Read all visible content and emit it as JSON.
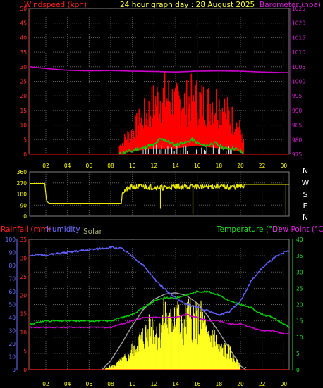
{
  "header": {
    "windspeed_label": "Windspeed (kph)",
    "title": "24 hour graph day : 28 August 2025",
    "barometer_label": "Barometer (hpa)"
  },
  "compass": [
    "N",
    "W",
    "S",
    "E",
    "N"
  ],
  "bottom_labels": {
    "rainfall": "Rainfall (mm)",
    "humidity": "Humidity",
    "solar": "Solar",
    "temperature": "Temperature (°C)",
    "dew_point": "Dew Point (°C)"
  },
  "colors": {
    "wind": "#ff0000",
    "gust": "#ff0000",
    "avg_wind": "#00d000",
    "barometer": "#cc00cc",
    "direction": "#e8e800",
    "humidity": "#6060ff",
    "temperature": "#00d000",
    "dewpoint": "#cc00cc",
    "solar": "#ffff20",
    "solar_max": "#a0a0a0",
    "grid": "#606060"
  },
  "chart_data": [
    {
      "type": "line",
      "name": "wind_and_barometer",
      "x_ticks": [
        "02",
        "04",
        "06",
        "08",
        "10",
        "12",
        "14",
        "16",
        "18",
        "20",
        "22",
        "00"
      ],
      "x_hours": [
        2,
        4,
        6,
        8,
        10,
        12,
        14,
        16,
        18,
        20,
        22,
        24
      ],
      "xlim": [
        0.5,
        24.5
      ],
      "left_axis": {
        "label": "Windspeed (kph)",
        "ylim": [
          0,
          50
        ],
        "ticks": [
          0,
          5,
          10,
          15,
          20,
          25,
          30,
          35,
          40,
          45,
          50
        ]
      },
      "right_axis": {
        "label": "Barometer (hpa)",
        "ylim": [
          975,
          1025
        ],
        "ticks": [
          975,
          980,
          985,
          990,
          995,
          1000,
          1005,
          1010,
          1015,
          1020,
          1025
        ]
      },
      "gust_envelope": {
        "x": [
          8.8,
          9.5,
          10,
          10.5,
          11,
          11.5,
          12,
          12.5,
          13,
          13.5,
          14,
          14.5,
          15,
          15.5,
          16,
          16.5,
          17,
          17.5,
          18,
          18.5,
          19,
          19.5,
          20,
          20.3
        ],
        "y": [
          4,
          9,
          11,
          15,
          19,
          21,
          26,
          28,
          29,
          28,
          25,
          27,
          26,
          28,
          27,
          26,
          25,
          27,
          25,
          23,
          19,
          16,
          12,
          6
        ]
      },
      "gust_low": {
        "x": [
          8.8,
          10,
          12,
          14,
          16,
          18,
          20,
          20.3
        ],
        "y": [
          0,
          1,
          2,
          2,
          3,
          2,
          1,
          0
        ]
      },
      "avg_wind": {
        "x": [
          8.8,
          9.5,
          10,
          10.5,
          11,
          11.5,
          12,
          12.5,
          13,
          13.5,
          14,
          14.5,
          15,
          15.5,
          16,
          16.5,
          17,
          17.5,
          18,
          18.5,
          19,
          19.5,
          20,
          20.3
        ],
        "y": [
          0,
          1,
          1,
          2,
          2,
          3,
          3,
          5,
          5,
          4,
          3,
          4,
          4,
          5,
          4,
          3,
          3,
          4,
          3,
          2,
          2,
          2,
          1,
          0
        ]
      },
      "barometer": {
        "x": [
          0.5,
          2,
          4,
          6,
          8,
          10,
          12,
          14,
          16,
          18,
          20,
          22,
          24,
          24.5
        ],
        "y": [
          1005,
          1004.4,
          1003.8,
          1003.6,
          1003.7,
          1003.5,
          1003.4,
          1003.2,
          1003.5,
          1003.6,
          1003.5,
          1003.2,
          1003,
          1003
        ]
      }
    },
    {
      "type": "line",
      "name": "wind_direction",
      "left_axis": {
        "ylim": [
          0,
          360
        ],
        "ticks": [
          0,
          90,
          180,
          270,
          360
        ]
      },
      "direction": {
        "x": [
          0.5,
          1.9,
          2,
          2.05,
          2.1,
          2.3,
          3.5,
          9,
          9.05,
          9.1,
          9.5,
          10,
          11,
          12,
          13,
          14,
          15,
          16,
          17,
          18,
          19,
          20,
          20.3,
          20.35,
          24.5
        ],
        "y": [
          265,
          265,
          180,
          135,
          120,
          105,
          105,
          105,
          180,
          195,
          220,
          235,
          240,
          235,
          230,
          240,
          238,
          238,
          240,
          240,
          235,
          240,
          240,
          258,
          258
        ]
      },
      "spikes": [
        {
          "x": 12.6,
          "y": 60
        },
        {
          "x": 15.6,
          "y": 15
        },
        {
          "x": 24.2,
          "y": 5
        }
      ]
    },
    {
      "type": "line",
      "name": "rain_humidity_solar_temperature",
      "rain_axis": {
        "label": "Rainfall (mm)",
        "ylim": [
          0,
          35
        ],
        "ticks": [
          0,
          5,
          10,
          15,
          20,
          25,
          30,
          35
        ]
      },
      "humidity_axis": {
        "label": "Humidity",
        "ylim": [
          0,
          100
        ],
        "ticks": [
          0,
          10,
          20,
          30,
          40,
          50,
          60,
          70,
          80,
          90,
          100
        ]
      },
      "temperature_axis": {
        "label": "Temperature (°C)",
        "ylim": [
          0,
          40
        ],
        "ticks": [
          0,
          5,
          10,
          15,
          20,
          25,
          30,
          35,
          40
        ]
      },
      "humidity": {
        "x": [
          0.5,
          2,
          4,
          6,
          8,
          9,
          10,
          11,
          12,
          13,
          14,
          15,
          16,
          17,
          18,
          19,
          20,
          21,
          22,
          23,
          24,
          24.5
        ],
        "y": [
          88,
          88,
          90,
          92,
          94,
          93,
          87,
          80,
          70,
          62,
          55,
          50,
          48,
          45,
          42,
          45,
          53,
          68,
          78,
          85,
          90,
          91
        ]
      },
      "temperature": {
        "x": [
          0.5,
          2,
          4,
          6,
          8,
          9,
          10,
          11,
          12,
          13,
          14,
          15,
          16,
          17,
          18,
          19,
          20,
          21,
          22,
          23,
          24,
          24.5
        ],
        "y": [
          14,
          15,
          15,
          15,
          15,
          16,
          17,
          19,
          21,
          22,
          22,
          23,
          24,
          24,
          23,
          21,
          20,
          19,
          17,
          16,
          14,
          13
        ]
      },
      "dewpoint": {
        "x": [
          0.5,
          2,
          4,
          6,
          8,
          9,
          10,
          11,
          12,
          13,
          14,
          15,
          16,
          17,
          18,
          19,
          20,
          21,
          22,
          23,
          24,
          24.5
        ],
        "y": [
          13,
          13,
          13,
          13,
          13,
          14,
          15,
          16,
          16,
          16,
          16,
          17,
          16,
          15,
          15,
          14,
          14,
          13,
          12,
          12,
          11,
          11
        ]
      },
      "solar_max_curve": {
        "x": [
          7.2,
          8,
          9,
          10,
          11,
          12,
          13,
          14,
          15,
          16,
          17,
          18,
          19,
          20,
          20.5
        ],
        "y": [
          0,
          7,
          20,
          34,
          46,
          54,
          58,
          59,
          57,
          51,
          41,
          29,
          16,
          3,
          0
        ]
      },
      "solar": {
        "x": [
          7.5,
          8.5,
          9.5,
          10.5,
          11.5,
          12,
          12.5,
          13,
          13.5,
          14,
          14.5,
          15,
          15.5,
          16,
          16.5,
          17,
          17.5,
          18,
          18.5,
          19,
          19.5,
          20
        ],
        "y": [
          1,
          4,
          10,
          22,
          30,
          36,
          26,
          44,
          34,
          52,
          30,
          40,
          42,
          36,
          40,
          22,
          30,
          16,
          16,
          14,
          8,
          2
        ]
      },
      "rain": {
        "x": [
          0.5,
          24.5
        ],
        "y": [
          0,
          0
        ]
      }
    }
  ]
}
